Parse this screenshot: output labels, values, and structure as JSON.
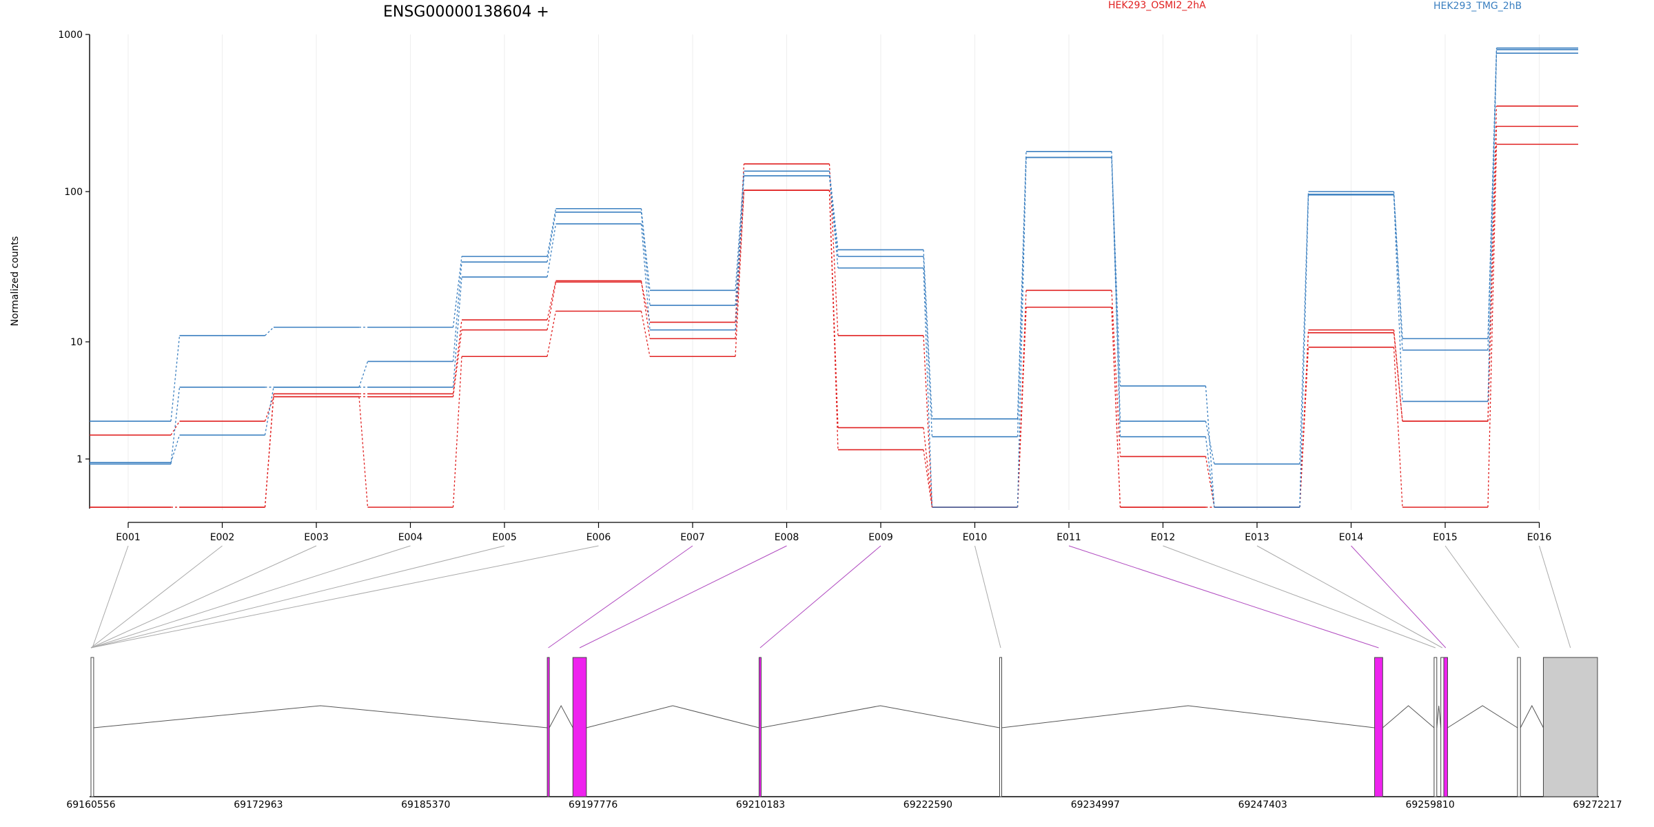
{
  "title": "ENSG00000138604 +",
  "ylabel": "Normalized counts",
  "colors": {
    "condition_a": "#e02020",
    "condition_b": "#3a7fc0",
    "highlight": "#ee22ee",
    "gray_exon": "#cccccc",
    "connector_gray": "#a9a9a9",
    "connector_purple": "#b04ac0"
  },
  "chart_data": {
    "type": "line",
    "scale": "log",
    "ylim": [
      0.5,
      1000
    ],
    "yticks": [
      "1",
      "10",
      "100",
      "1000"
    ],
    "categories": [
      "E001",
      "E002",
      "E003",
      "E004",
      "E005",
      "E006",
      "E007",
      "E008",
      "E009",
      "E010",
      "E011",
      "E012",
      "E013",
      "E014",
      "E015",
      "E016"
    ],
    "series": [
      {
        "name": "HEK293_OSMI2_2hA",
        "color": "#e02020",
        "values": [
          1.6,
          2.1,
          3.4,
          3.4,
          12.0,
          25.0,
          13.5,
          150,
          11.0,
          0.5,
          22.0,
          1.05,
          0.5,
          11.5,
          2.1,
          350
        ]
      },
      {
        "group": "HEK293_OSMI2_2hA",
        "color": "#e02020",
        "values": [
          0.5,
          0.5,
          3.6,
          3.6,
          14.0,
          25.5,
          10.5,
          102,
          1.85,
          0.5,
          17.0,
          0.5,
          0.5,
          12.0,
          2.1,
          260
        ]
      },
      {
        "group": "HEK293_OSMI2_2hA",
        "color": "#e02020",
        "values": [
          0.5,
          0.5,
          3.4,
          0.5,
          7.5,
          16.0,
          7.5,
          102,
          1.2,
          0.5,
          17.0,
          0.5,
          0.5,
          9.0,
          0.5,
          200
        ]
      },
      {
        "name": "HEK293_TMG_2hB",
        "color": "#3a7fc0",
        "values": [
          2.1,
          11.0,
          12.5,
          12.5,
          37.0,
          77.0,
          22.0,
          135,
          41.0,
          2.2,
          180,
          2.1,
          0.93,
          100,
          10.5,
          820
        ]
      },
      {
        "group": "HEK293_TMG_2hB",
        "color": "#3a7fc0",
        "values": [
          0.93,
          4.1,
          4.1,
          6.8,
          34.0,
          73.0,
          17.5,
          126,
          37.0,
          1.55,
          165,
          4.2,
          0.5,
          96,
          8.5,
          800
        ]
      },
      {
        "group": "HEK293_TMG_2hB",
        "color": "#3a7fc0",
        "values": [
          0.95,
          1.6,
          4.1,
          4.1,
          27.0,
          61.0,
          12.0,
          126,
          31.0,
          0.5,
          165,
          1.55,
          0.5,
          95,
          3.1,
          760
        ]
      }
    ],
    "gene_model": {
      "coordinate_labels": [
        "69160556",
        "69172963",
        "69185370",
        "69197776",
        "69210183",
        "69222590",
        "69234997",
        "69247403",
        "69259810",
        "69272217"
      ],
      "range": [
        69160556,
        69272217
      ],
      "exons": [
        {
          "bin": "E001",
          "start": 69160556,
          "end": 69160756,
          "highlight": false
        },
        {
          "bin": "E007",
          "start": 69194376,
          "end": 69194526,
          "highlight": true
        },
        {
          "bin": "E008",
          "start": 69196276,
          "end": 69197276,
          "highlight": true
        },
        {
          "bin": "E009",
          "start": 69210076,
          "end": 69210226,
          "highlight": true
        },
        {
          "bin": "E010",
          "start": 69227906,
          "end": 69228056,
          "highlight": false
        },
        {
          "bin": "E011",
          "start": 69255696,
          "end": 69256296,
          "highlight": true
        },
        {
          "bin": "E012",
          "start": 69260106,
          "end": 69260306,
          "highlight": false
        },
        {
          "bin": "E013",
          "start": 69260606,
          "end": 69260826,
          "highlight": false
        },
        {
          "bin": "E014",
          "start": 69260826,
          "end": 69261106,
          "highlight": true
        },
        {
          "bin": "E015",
          "start": 69266286,
          "end": 69266506,
          "highlight": false
        },
        {
          "bin": "E016",
          "start": 69268206,
          "end": 69272217,
          "highlight": false,
          "utr": true
        }
      ]
    }
  }
}
